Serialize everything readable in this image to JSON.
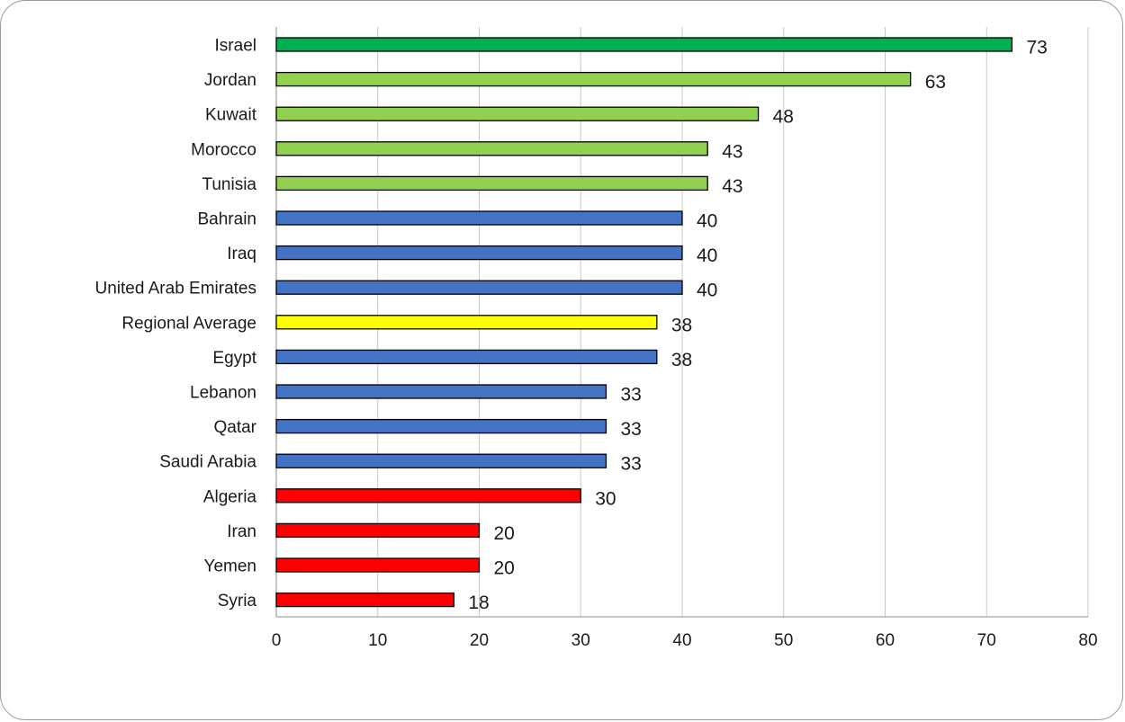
{
  "chart_data": {
    "type": "bar",
    "orientation": "horizontal",
    "title": "",
    "xlabel": "",
    "ylabel": "",
    "xlim": [
      0,
      80
    ],
    "x_ticks": [
      "0",
      "10",
      "20",
      "30",
      "40",
      "50",
      "60",
      "70",
      "80"
    ],
    "grid": "vertical",
    "legend": "none",
    "categories": [
      "Israel",
      "Jordan",
      "Kuwait",
      "Morocco",
      "Tunisia",
      "Bahrain",
      "Iraq",
      "United Arab Emirates",
      "Regional Average",
      "Egypt",
      "Lebanon",
      "Qatar",
      "Saudi Arabia",
      "Algeria",
      "Iran",
      "Yemen",
      "Syria"
    ],
    "values": [
      72.5,
      62.5,
      47.5,
      42.5,
      42.5,
      40,
      40,
      40,
      37.5,
      37.5,
      32.5,
      32.5,
      32.5,
      30,
      20,
      20,
      17.5
    ],
    "data_labels": [
      "73",
      "63",
      "48",
      "43",
      "43",
      "40",
      "40",
      "40",
      "38",
      "38",
      "33",
      "33",
      "33",
      "30",
      "20",
      "20",
      "18"
    ],
    "bar_colors": [
      "#00b050",
      "#92d050",
      "#92d050",
      "#92d050",
      "#92d050",
      "#4472c4",
      "#4472c4",
      "#4472c4",
      "#ffff00",
      "#4472c4",
      "#4472c4",
      "#4472c4",
      "#4472c4",
      "#ff0000",
      "#ff0000",
      "#ff0000",
      "#ff0000"
    ]
  }
}
